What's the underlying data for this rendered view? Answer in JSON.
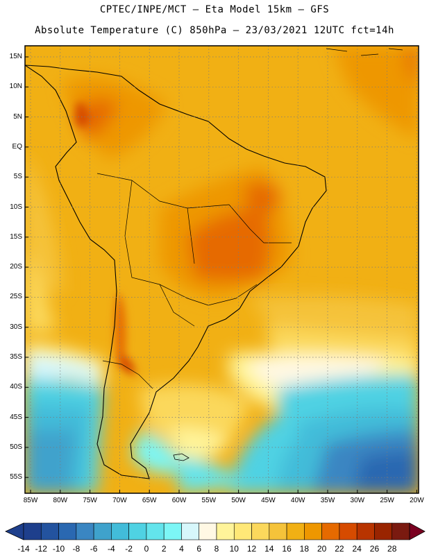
{
  "header": {
    "line1": "CPTEC/INPE/MCT –  Eta Model 15km – GFS",
    "line2": "Absolute Temperature (C) 850hPa – 23/03/2021 12UTC fct=14h"
  },
  "map": {
    "lat_labels": [
      "15N",
      "10N",
      "5N",
      "EQ",
      "5S",
      "10S",
      "15S",
      "20S",
      "25S",
      "30S",
      "35S",
      "40S",
      "45S",
      "50S",
      "55S"
    ],
    "lon_labels": [
      "85W",
      "80W",
      "75W",
      "70W",
      "65W",
      "60W",
      "55W",
      "50W",
      "45W",
      "40W",
      "35W",
      "30W",
      "25W",
      "20W"
    ]
  },
  "colorbar": {
    "tick_labels": [
      "-14",
      "-12",
      "-10",
      "-8",
      "-6",
      "-4",
      "-2",
      "0",
      "2",
      "4",
      "6",
      "8",
      "10",
      "12",
      "14",
      "16",
      "18",
      "20",
      "22",
      "24",
      "26",
      "28"
    ],
    "colors": [
      "#1e3f8c",
      "#23539f",
      "#2a68b1",
      "#3a86c2",
      "#3fa2cc",
      "#42bcd9",
      "#4fd2e3",
      "#63e4ec",
      "#7cf6f6",
      "#d7f7fb",
      "#fff8e4",
      "#fff49a",
      "#ffe877",
      "#fbd85c",
      "#f5c33a",
      "#f1b014",
      "#ee9700",
      "#e66a00",
      "#d64b00",
      "#b83400",
      "#992400",
      "#7a1a10"
    ]
  }
}
